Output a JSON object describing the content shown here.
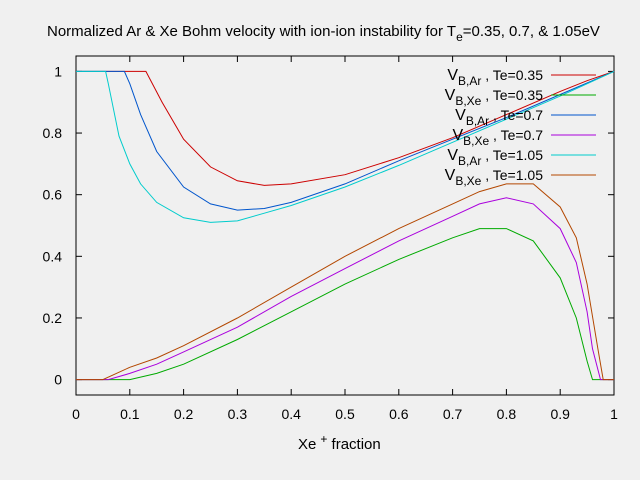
{
  "chart_data": {
    "type": "line",
    "title": {
      "prefix": "Normalized Ar & Xe Bohm velocity with ion-ion instability for T",
      "sub": "e",
      "suffix": "=0.35, 0.7, & 1.05eV"
    },
    "xlabel": {
      "main": "Xe",
      "sup": "+",
      "suffix": " fraction"
    },
    "ylabel": "",
    "xlim": [
      0,
      1
    ],
    "ylim": [
      -0.05,
      1.05
    ],
    "xticks": [
      "0",
      "0.1",
      "0.2",
      "0.3",
      "0.4",
      "0.5",
      "0.6",
      "0.7",
      "0.8",
      "0.9",
      "1"
    ],
    "yticks": [
      "0",
      "0.2",
      "0.4",
      "0.6",
      "0.8",
      "1"
    ],
    "legend_position": "top-right",
    "grid": false,
    "series": [
      {
        "name": "V B,Ar , Te=0.35",
        "v": "V",
        "sub": "B,Ar",
        "te": " , Te=0.35",
        "color": "#cc0000",
        "x": [
          0,
          0.12,
          0.13,
          0.16,
          0.2,
          0.25,
          0.3,
          0.35,
          0.4,
          0.5,
          0.6,
          0.7,
          0.8,
          0.9,
          0.95,
          1.0
        ],
        "y": [
          1,
          1,
          1,
          0.9,
          0.78,
          0.69,
          0.645,
          0.63,
          0.635,
          0.665,
          0.72,
          0.785,
          0.86,
          0.935,
          0.97,
          1.0
        ]
      },
      {
        "name": "V B,Xe , Te=0.35",
        "v": "V",
        "sub": "B,Xe",
        "te": " , Te=0.35",
        "color": "#00aa00",
        "x": [
          0,
          0.07,
          0.1,
          0.15,
          0.2,
          0.3,
          0.4,
          0.5,
          0.6,
          0.7,
          0.75,
          0.8,
          0.85,
          0.9,
          0.93,
          0.95,
          0.96,
          1.0
        ],
        "y": [
          0,
          0,
          0,
          0.02,
          0.05,
          0.13,
          0.22,
          0.31,
          0.39,
          0.46,
          0.49,
          0.49,
          0.45,
          0.33,
          0.2,
          0.06,
          0,
          0
        ]
      },
      {
        "name": "V B,Ar , Te=0.7",
        "v": "V",
        "sub": "B,Ar",
        "te": " , Te=0.7",
        "color": "#0055cc",
        "x": [
          0,
          0.08,
          0.09,
          0.1,
          0.12,
          0.15,
          0.2,
          0.25,
          0.3,
          0.35,
          0.4,
          0.5,
          0.6,
          0.7,
          0.8,
          0.9,
          1.0
        ],
        "y": [
          1,
          1,
          1,
          0.96,
          0.86,
          0.74,
          0.625,
          0.57,
          0.55,
          0.555,
          0.575,
          0.635,
          0.71,
          0.78,
          0.85,
          0.925,
          1.0
        ]
      },
      {
        "name": "V B,Xe , Te=0.7",
        "v": "V",
        "sub": "B,Xe",
        "te": " , Te=0.7",
        "color": "#aa00dd",
        "x": [
          0,
          0.06,
          0.1,
          0.15,
          0.2,
          0.3,
          0.4,
          0.5,
          0.6,
          0.7,
          0.75,
          0.8,
          0.85,
          0.9,
          0.93,
          0.95,
          0.96,
          0.975,
          1.0
        ],
        "y": [
          0,
          0,
          0.02,
          0.05,
          0.09,
          0.17,
          0.27,
          0.36,
          0.45,
          0.53,
          0.57,
          0.59,
          0.57,
          0.49,
          0.38,
          0.22,
          0.1,
          0,
          0
        ]
      },
      {
        "name": "V B,Ar , Te=1.05",
        "v": "V",
        "sub": "B,Ar",
        "te": " , Te=1.05",
        "color": "#00cccc",
        "x": [
          0,
          0.055,
          0.06,
          0.08,
          0.1,
          0.12,
          0.15,
          0.2,
          0.25,
          0.3,
          0.35,
          0.4,
          0.5,
          0.6,
          0.7,
          0.8,
          0.9,
          1.0
        ],
        "y": [
          1,
          1,
          0.96,
          0.79,
          0.7,
          0.635,
          0.575,
          0.525,
          0.51,
          0.515,
          0.54,
          0.565,
          0.625,
          0.695,
          0.77,
          0.845,
          0.92,
          1.0
        ]
      },
      {
        "name": "V B,Xe , Te=1.05",
        "v": "V",
        "sub": "B,Xe",
        "te": " , Te=1.05",
        "color": "#b34700",
        "x": [
          0,
          0.05,
          0.1,
          0.15,
          0.2,
          0.3,
          0.4,
          0.5,
          0.6,
          0.7,
          0.75,
          0.8,
          0.85,
          0.9,
          0.93,
          0.95,
          0.97,
          0.98,
          1.0
        ],
        "y": [
          0,
          0,
          0.04,
          0.07,
          0.11,
          0.2,
          0.3,
          0.4,
          0.49,
          0.57,
          0.61,
          0.635,
          0.635,
          0.56,
          0.46,
          0.31,
          0.1,
          0,
          0
        ]
      }
    ]
  }
}
